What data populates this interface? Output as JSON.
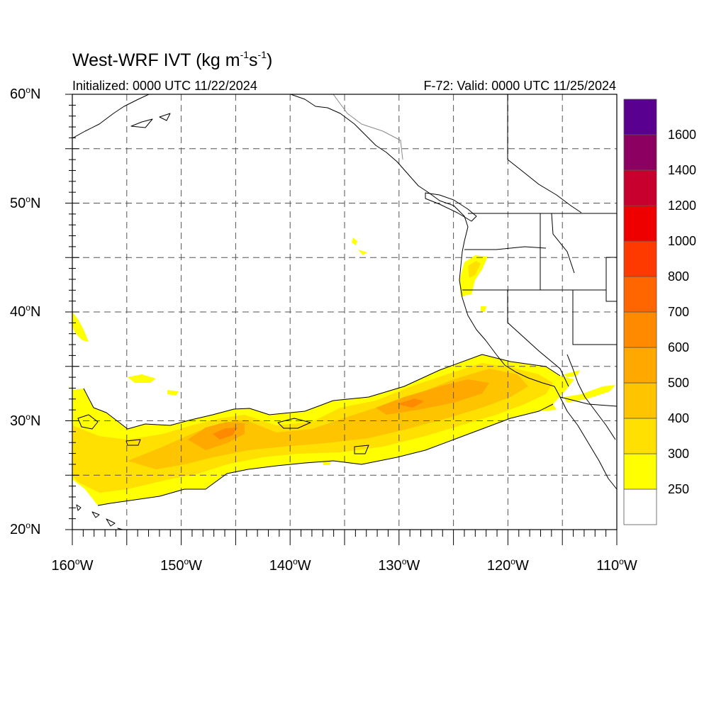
{
  "title": {
    "main": "West-WRF IVT (kg m",
    "sup1": "-1",
    "mid": "s",
    "sup2": "-1",
    "close": ")"
  },
  "subtitle_left": "Initialized: 0000 UTC 11/22/2024",
  "subtitle_right": "F-72: Valid: 0000 UTC 11/25/2024",
  "map": {
    "lon_range": [
      -160,
      -110
    ],
    "lat_range": [
      20,
      60
    ],
    "lat_labels": [
      {
        "value": 60,
        "num": "60",
        "suffix": "N"
      },
      {
        "value": 50,
        "num": "50",
        "suffix": "N"
      },
      {
        "value": 40,
        "num": "40",
        "suffix": "N"
      },
      {
        "value": 30,
        "num": "30",
        "suffix": "N"
      },
      {
        "value": 20,
        "num": "20",
        "suffix": "N"
      }
    ],
    "lon_labels": [
      {
        "value": -160,
        "num": "160",
        "suffix": "W"
      },
      {
        "value": -150,
        "num": "150",
        "suffix": "W"
      },
      {
        "value": -140,
        "num": "140",
        "suffix": "W"
      },
      {
        "value": -130,
        "num": "130",
        "suffix": "W"
      },
      {
        "value": -120,
        "num": "120",
        "suffix": "W"
      },
      {
        "value": -110,
        "num": "110",
        "suffix": "W"
      }
    ],
    "grid_spacing_deg": 5,
    "grid_style": "dashed"
  },
  "colorbar": {
    "labels": [
      "1600",
      "1400",
      "1200",
      "1000",
      "800",
      "700",
      "600",
      "500",
      "400",
      "300",
      "250"
    ],
    "bins": [
      {
        "color": "#ffffff"
      },
      {
        "color": "#ffff00"
      },
      {
        "color": "#ffe000"
      },
      {
        "color": "#ffc400"
      },
      {
        "color": "#ffa800"
      },
      {
        "color": "#ff8a00"
      },
      {
        "color": "#ff6600"
      },
      {
        "color": "#ff3a00"
      },
      {
        "color": "#ee0000"
      },
      {
        "color": "#c8002e"
      },
      {
        "color": "#8b0060"
      },
      {
        "color": "#5a0090"
      }
    ]
  },
  "ivt_field": {
    "description_levels": "250-600 kg m-1 s-1 along atmospheric river axis",
    "colors": {
      "c250": "#ffff00",
      "c300": "#ffe000",
      "c400": "#ffc400",
      "c500": "#ffa800",
      "c600": "#ff8a00"
    }
  }
}
